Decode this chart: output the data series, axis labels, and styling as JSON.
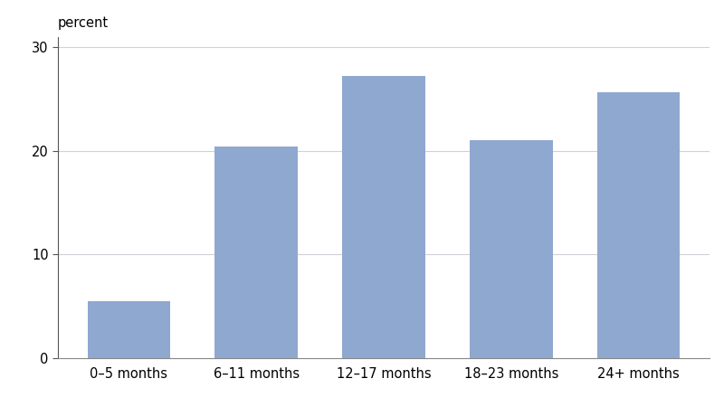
{
  "categories": [
    "0–5 months",
    "6–11 months",
    "12–17 months",
    "18–23 months",
    "24+ months"
  ],
  "values": [
    5.5,
    20.4,
    27.2,
    21.0,
    25.6
  ],
  "bar_color": "#8fa8d0",
  "ylabel": "percent",
  "ylim": [
    0,
    31
  ],
  "yticks": [
    0,
    10,
    20,
    30
  ],
  "background_color": "#ffffff",
  "grid_color": "#d0d0d8",
  "bar_width": 0.65
}
